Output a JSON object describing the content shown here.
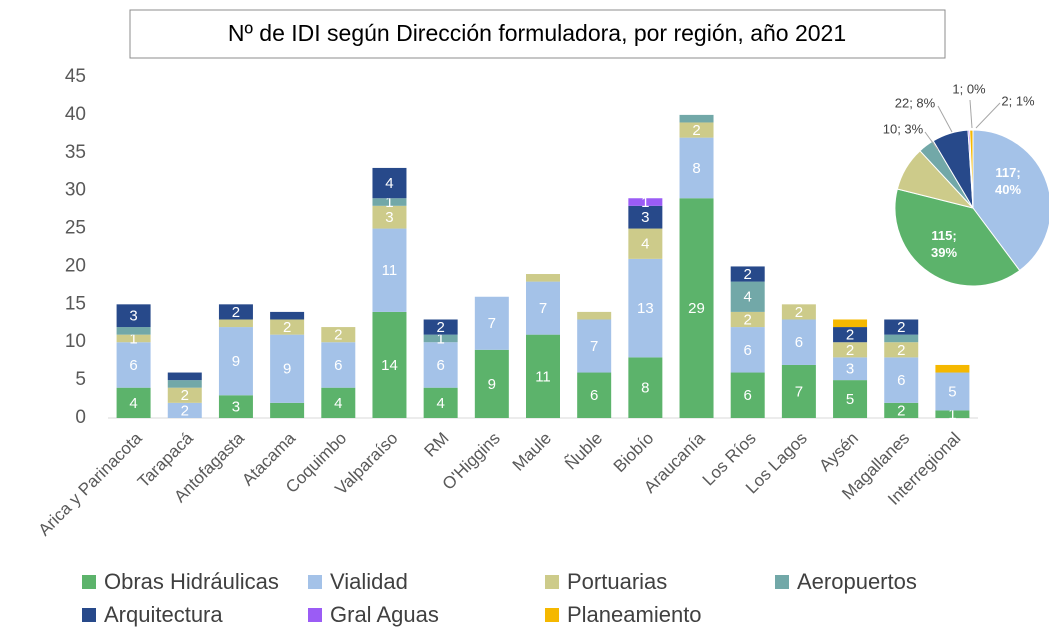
{
  "chart_data": [
    {
      "type": "stacked_bar",
      "title": "Nº de IDI según Dirección formuladora, por región, año 2021",
      "categories": [
        "Arica y Parinacota",
        "Tarapacá",
        "Antofagasta",
        "Atacama",
        "Coquimbo",
        "Valparaíso",
        "RM",
        "O'Higgins",
        "Maule",
        "Ñuble",
        "Biobío",
        "Araucanía",
        "Los Ríos",
        "Los Lagos",
        "Aysén",
        "Magallanes",
        "Interregional"
      ],
      "series": [
        {
          "name": "Obras Hidráulicas",
          "color": "#5cb36b",
          "values": [
            4,
            0,
            3,
            2,
            4,
            14,
            4,
            9,
            11,
            6,
            8,
            29,
            6,
            7,
            5,
            2,
            1
          ],
          "value_labels": [
            "4",
            null,
            "3",
            null,
            "4",
            "14",
            "4",
            "9",
            "11",
            "6",
            "8",
            "29",
            "6",
            "7",
            "5",
            "2",
            "1"
          ]
        },
        {
          "name": "Vialidad",
          "color": "#a4c2e8",
          "values": [
            6,
            2,
            9,
            9,
            6,
            11,
            6,
            7,
            7,
            7,
            13,
            8,
            6,
            6,
            3,
            6,
            5
          ],
          "value_labels": [
            "6",
            "2",
            "9",
            "9",
            "6",
            "11",
            "6",
            "7",
            "7",
            "7",
            "13",
            "8",
            "6",
            "6",
            "3",
            "6",
            "5"
          ]
        },
        {
          "name": "Portuarias",
          "color": "#cdcb8a",
          "values": [
            1,
            2,
            1,
            2,
            2,
            3,
            0,
            0,
            1,
            1,
            4,
            2,
            2,
            2,
            2,
            2,
            0
          ],
          "value_labels": [
            "1",
            "2",
            null,
            "2",
            "2",
            "3",
            null,
            null,
            null,
            null,
            "4",
            "2",
            "2",
            "2",
            "2",
            "2",
            null
          ]
        },
        {
          "name": "Aeropuertos",
          "color": "#72a8a8",
          "values": [
            1,
            1,
            0,
            0,
            0,
            1,
            1,
            0,
            0,
            0,
            0,
            1,
            4,
            0,
            0,
            1,
            0
          ],
          "value_labels": [
            null,
            null,
            null,
            null,
            null,
            "1",
            "1",
            null,
            null,
            null,
            null,
            null,
            "4",
            null,
            null,
            null,
            null
          ]
        },
        {
          "name": "Arquitectura",
          "color": "#27498a",
          "values": [
            3,
            1,
            2,
            1,
            0,
            4,
            2,
            0,
            0,
            0,
            3,
            0,
            2,
            0,
            2,
            2,
            0
          ],
          "value_labels": [
            "3",
            null,
            "2",
            null,
            null,
            "4",
            "2",
            null,
            null,
            null,
            "3",
            null,
            "2",
            null,
            "2",
            "2",
            null
          ]
        },
        {
          "name": "Gral Aguas",
          "color": "#9b5cf5",
          "values": [
            0,
            0,
            0,
            0,
            0,
            0,
            0,
            0,
            0,
            0,
            1,
            0,
            0,
            0,
            0,
            0,
            0
          ],
          "value_labels": [
            null,
            null,
            null,
            null,
            null,
            null,
            null,
            null,
            null,
            null,
            "1",
            null,
            null,
            null,
            null,
            null,
            null
          ]
        },
        {
          "name": "Planeamiento",
          "color": "#f5b800",
          "values": [
            0,
            0,
            0,
            0,
            0,
            0,
            0,
            0,
            0,
            0,
            0,
            0,
            0,
            0,
            1,
            0,
            1
          ],
          "value_labels": [
            null,
            null,
            null,
            null,
            null,
            null,
            null,
            null,
            null,
            null,
            null,
            null,
            null,
            null,
            null,
            null,
            null
          ]
        }
      ],
      "ylim": [
        0,
        45
      ],
      "yticks": [
        0,
        5,
        10,
        15,
        20,
        25,
        30,
        35,
        40,
        45
      ],
      "grid": false,
      "legend": "bottom"
    },
    {
      "type": "pie",
      "values": [
        115,
        117,
        27,
        10,
        22,
        1,
        2
      ],
      "value_labels": [
        "115; 39%",
        "117; 40%",
        null,
        "10; 3%",
        "22; 8%",
        "1; 0%",
        "2; 1%"
      ]
    }
  ]
}
